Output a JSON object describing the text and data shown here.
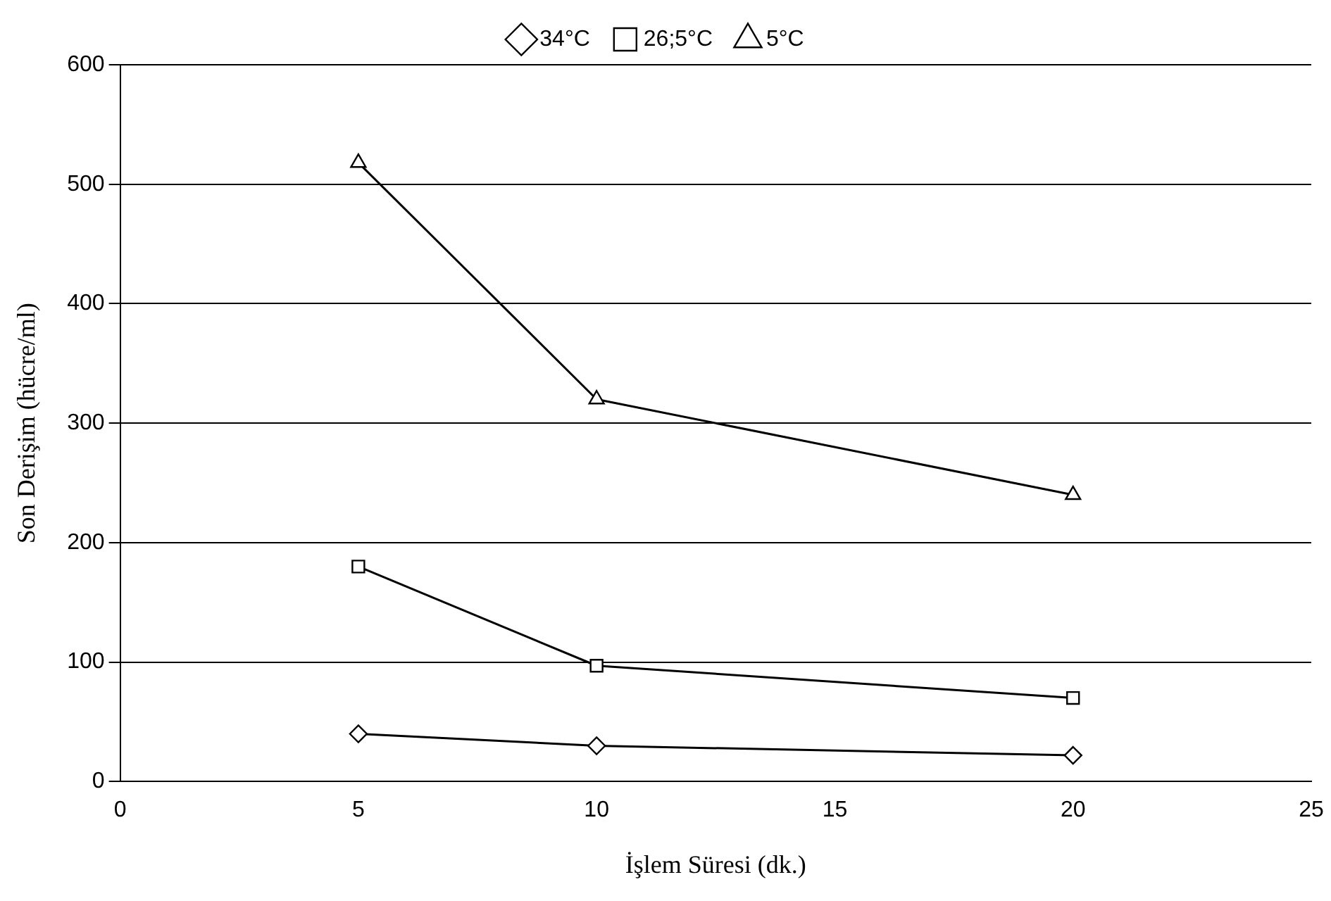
{
  "chart_data": {
    "type": "line",
    "xlabel": "İşlem Süresi (dk.)",
    "ylabel": "Son Derişim (hücre/ml)",
    "x": [
      5,
      10,
      20
    ],
    "series": [
      {
        "name": "34°C",
        "color": "#000000",
        "marker": "diamond",
        "values": [
          40,
          30,
          22
        ]
      },
      {
        "name": "26;5°C",
        "color": "#000000",
        "marker": "square",
        "values": [
          180,
          97,
          70
        ]
      },
      {
        "name": "5°C",
        "color": "#000000",
        "marker": "triangle",
        "values": [
          518,
          320,
          240
        ]
      }
    ],
    "xlim": [
      0,
      25
    ],
    "xticks": [
      0,
      5,
      10,
      15,
      20,
      25
    ],
    "ylim": [
      0,
      600
    ],
    "yticks": [
      0,
      100,
      200,
      300,
      400,
      500,
      600
    ],
    "grid": "y",
    "legend": "top",
    "line_style": "solid"
  }
}
